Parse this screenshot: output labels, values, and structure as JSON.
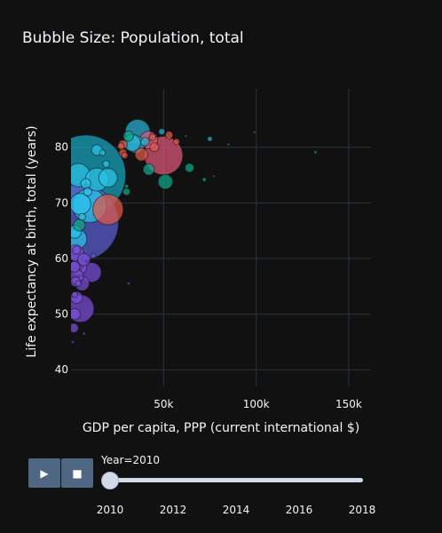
{
  "chart_data": {
    "type": "scatter",
    "title": "Bubble Size: Population, total",
    "xlabel": "GDP per capita, PPP (current international $)",
    "ylabel": "Life expectancy at birth, total (years)",
    "xlim": [
      0,
      162000
    ],
    "ylim": [
      37,
      90.5
    ],
    "xticks": [
      50000,
      100000,
      150000
    ],
    "xtick_labels": [
      "50k",
      "100k",
      "150k"
    ],
    "yticks": [
      40,
      50,
      60,
      70,
      80
    ],
    "grid": true,
    "points": [
      {
        "x": 8000,
        "y": 75.0,
        "pop": 1340,
        "color": "#19a8c4"
      },
      {
        "x": 5000,
        "y": 66.5,
        "pop": 1230,
        "color": "#5b5fd6"
      },
      {
        "x": 50000,
        "y": 78.5,
        "pop": 309,
        "color": "#e0597a"
      },
      {
        "x": 10000,
        "y": 69.5,
        "pop": 240,
        "color": "#2bc4e8"
      },
      {
        "x": 20000,
        "y": 68.8,
        "pop": 195,
        "color": "#e05a4a"
      },
      {
        "x": 5000,
        "y": 51.0,
        "pop": 158,
        "color": "#7c4fd9"
      },
      {
        "x": 36000,
        "y": 82.8,
        "pop": 127,
        "color": "#2bb3d4"
      },
      {
        "x": 4000,
        "y": 75.0,
        "pop": 113,
        "color": "#2bc4e8"
      },
      {
        "x": 14000,
        "y": 74.2,
        "pop": 110,
        "color": "#2bc4e8"
      },
      {
        "x": 5000,
        "y": 69.8,
        "pop": 93,
        "color": "#2bc4e8"
      },
      {
        "x": 3000,
        "y": 63.5,
        "pop": 88,
        "color": "#2bc4e8"
      },
      {
        "x": 11000,
        "y": 57.5,
        "pop": 82,
        "color": "#7c4fd9"
      },
      {
        "x": 20000,
        "y": 74.5,
        "pop": 73,
        "color": "#2bc4e8"
      },
      {
        "x": 42000,
        "y": 81.3,
        "pop": 65,
        "color": "#e0597a"
      },
      {
        "x": 35000,
        "y": 80.5,
        "pop": 62,
        "color": "#2bb3d4"
      },
      {
        "x": 33000,
        "y": 80.8,
        "pop": 60,
        "color": "#2bb3d4"
      },
      {
        "x": 4000,
        "y": 58.5,
        "pop": 58,
        "color": "#7c4fd9"
      },
      {
        "x": 2500,
        "y": 61.0,
        "pop": 54,
        "color": "#7c4fd9"
      },
      {
        "x": 51000,
        "y": 73.8,
        "pop": 45,
        "color": "#0fa88a"
      },
      {
        "x": 6000,
        "y": 55.5,
        "pop": 43,
        "color": "#7c4fd9"
      },
      {
        "x": 3000,
        "y": 56.8,
        "pop": 40,
        "color": "#7c4fd9"
      },
      {
        "x": 2000,
        "y": 64.8,
        "pop": 36,
        "color": "#2bc4e8"
      },
      {
        "x": 38000,
        "y": 78.7,
        "pop": 34,
        "color": "#e05a4a"
      },
      {
        "x": 7000,
        "y": 59.8,
        "pop": 32,
        "color": "#7c4fd9"
      },
      {
        "x": 3000,
        "y": 53.0,
        "pop": 30,
        "color": "#7c4fd9"
      },
      {
        "x": 4500,
        "y": 66.0,
        "pop": 29,
        "color": "#0fa88a"
      },
      {
        "x": 42000,
        "y": 76.0,
        "pop": 27,
        "color": "#0fa88a"
      },
      {
        "x": 2000,
        "y": 50.0,
        "pop": 26,
        "color": "#7c4fd9"
      },
      {
        "x": 1800,
        "y": 58.5,
        "pop": 25,
        "color": "#7c4fd9"
      },
      {
        "x": 14000,
        "y": 79.5,
        "pop": 24,
        "color": "#2bc4e8"
      },
      {
        "x": 31000,
        "y": 82.0,
        "pop": 22,
        "color": "#0fa88a"
      },
      {
        "x": 8000,
        "y": 73.5,
        "pop": 21,
        "color": "#2bc4e8"
      },
      {
        "x": 2500,
        "y": 55.8,
        "pop": 20,
        "color": "#7c4fd9"
      },
      {
        "x": 1500,
        "y": 47.5,
        "pop": 18,
        "color": "#7c4fd9"
      },
      {
        "x": 64000,
        "y": 76.3,
        "pop": 17,
        "color": "#0fa88a"
      },
      {
        "x": 45000,
        "y": 80.0,
        "pop": 17,
        "color": "#e05a4a"
      },
      {
        "x": 28000,
        "y": 80.5,
        "pop": 16,
        "color": "#e05a4a"
      },
      {
        "x": 40000,
        "y": 81.0,
        "pop": 15,
        "color": "#2bb3d4"
      },
      {
        "x": 9000,
        "y": 72.0,
        "pop": 14,
        "color": "#2bc4e8"
      },
      {
        "x": 3000,
        "y": 61.5,
        "pop": 14,
        "color": "#7c4fd9"
      },
      {
        "x": 28000,
        "y": 79.0,
        "pop": 13,
        "color": "#e05a4a"
      },
      {
        "x": 53000,
        "y": 82.2,
        "pop": 12,
        "color": "#e05a4a"
      },
      {
        "x": 30000,
        "y": 72.0,
        "pop": 11,
        "color": "#0fa88a"
      },
      {
        "x": 6000,
        "y": 67.5,
        "pop": 10,
        "color": "#2bc4e8"
      },
      {
        "x": 19000,
        "y": 77.0,
        "pop": 10,
        "color": "#2bc4e8"
      },
      {
        "x": 44000,
        "y": 81.8,
        "pop": 9.5,
        "color": "#e05a4a"
      },
      {
        "x": 27000,
        "y": 80.2,
        "pop": 9,
        "color": "#e05a4a"
      },
      {
        "x": 29000,
        "y": 78.5,
        "pop": 8,
        "color": "#e05a4a"
      },
      {
        "x": 57000,
        "y": 81.0,
        "pop": 8,
        "color": "#e05a4a"
      },
      {
        "x": 49000,
        "y": 82.8,
        "pop": 8,
        "color": "#2bb3d4"
      },
      {
        "x": 17000,
        "y": 79.0,
        "pop": 7,
        "color": "#2bc4e8"
      },
      {
        "x": 4000,
        "y": 55.5,
        "pop": 7,
        "color": "#7c4fd9"
      },
      {
        "x": 2000,
        "y": 53.5,
        "pop": 7,
        "color": "#7c4fd9"
      },
      {
        "x": 75000,
        "y": 81.5,
        "pop": 5,
        "color": "#2bb3d4"
      },
      {
        "x": 12000,
        "y": 60.5,
        "pop": 5,
        "color": "#7c4fd9"
      },
      {
        "x": 72000,
        "y": 74.2,
        "pop": 3,
        "color": "#0fa88a"
      },
      {
        "x": 30000,
        "y": 73.0,
        "pop": 3,
        "color": "#0fa88a"
      },
      {
        "x": 132000,
        "y": 79.1,
        "pop": 1.7,
        "color": "#0fa88a"
      },
      {
        "x": 85000,
        "y": 80.5,
        "pop": 1,
        "color": "#2bb3d4"
      },
      {
        "x": 77000,
        "y": 74.8,
        "pop": 1,
        "color": "#0fa88a"
      },
      {
        "x": 31000,
        "y": 55.5,
        "pop": 1.5,
        "color": "#7c4fd9"
      },
      {
        "x": 7000,
        "y": 46.5,
        "pop": 1.5,
        "color": "#7c4fd9"
      },
      {
        "x": 1000,
        "y": 45.0,
        "pop": 1.5,
        "color": "#7c4fd9"
      },
      {
        "x": 99000,
        "y": 82.7,
        "pop": 0.5,
        "color": "#2bb3d4"
      },
      {
        "x": 62000,
        "y": 82.0,
        "pop": 0.5,
        "color": "#e05a4a"
      }
    ]
  },
  "animation": {
    "play_icon": "▶",
    "stop_icon": "■",
    "slider_label": "Year=2010",
    "slider_value": 2010,
    "slider_range": [
      2010,
      2018
    ],
    "slider_ticks": [
      "2010",
      "2012",
      "2014",
      "2016",
      "2018"
    ]
  }
}
